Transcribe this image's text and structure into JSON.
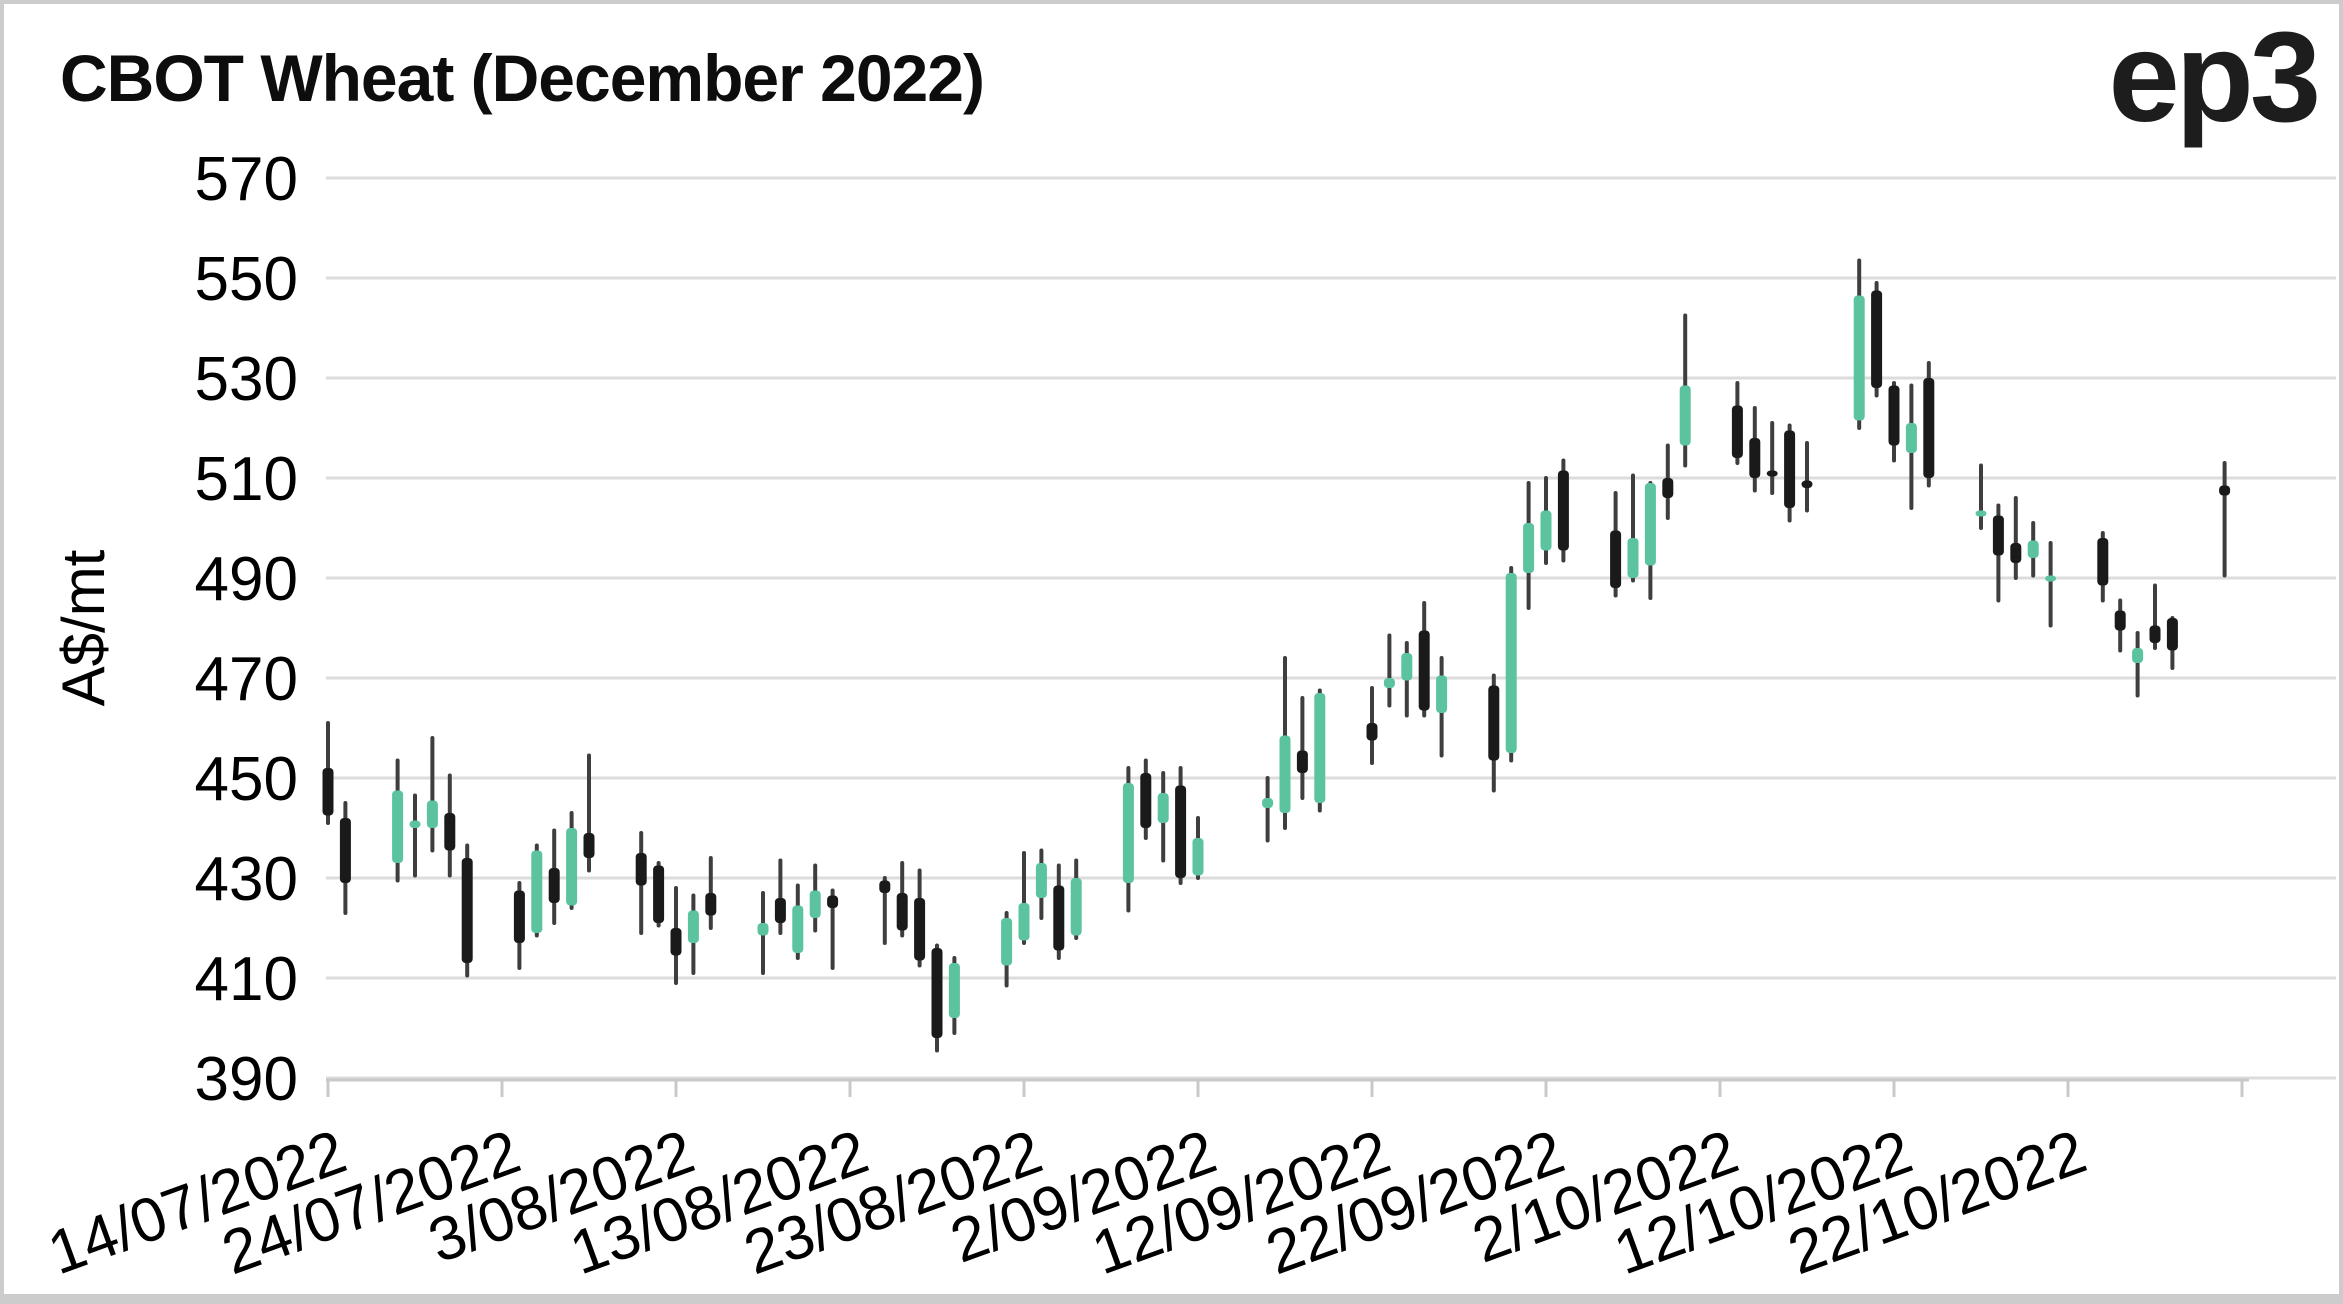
{
  "title": "CBOT Wheat (December 2022)",
  "logo": {
    "text": "ep3"
  },
  "chart_data": {
    "type": "candlestick",
    "title": "CBOT Wheat (December 2022)",
    "ylabel": "A$/mt",
    "ylim": [
      390,
      570
    ],
    "y_ticks": [
      390,
      410,
      430,
      450,
      470,
      490,
      510,
      530,
      550,
      570
    ],
    "grid": "horizontal",
    "legend": "none",
    "x_ticks": [
      {
        "label": "14/07/2022",
        "day": 0
      },
      {
        "label": "24/07/2022",
        "day": 10
      },
      {
        "label": "3/08/2022",
        "day": 20
      },
      {
        "label": "13/08/2022",
        "day": 30
      },
      {
        "label": "23/08/2022",
        "day": 40
      },
      {
        "label": "2/09/2022",
        "day": 50
      },
      {
        "label": "12/09/2022",
        "day": 60
      },
      {
        "label": "22/09/2022",
        "day": 70
      },
      {
        "label": "2/10/2022",
        "day": 80
      },
      {
        "label": "12/10/2022",
        "day": 90
      },
      {
        "label": "22/10/2022",
        "day": 100
      },
      {
        "label": "",
        "day": 110
      }
    ],
    "colors": {
      "up": "#5bc39e",
      "down": "#1a1a1a",
      "wick": "#3e3e3e",
      "grid": "#dcdcdc",
      "axis": "#c9c9c9",
      "text": "#000000"
    },
    "candle_fields": [
      "date",
      "day",
      "open",
      "high",
      "low",
      "close"
    ],
    "candles": [
      [
        "14/07/2022",
        0,
        452,
        461,
        441,
        442.5
      ],
      [
        "15/07/2022",
        1,
        442,
        445,
        423,
        429
      ],
      [
        "18/07/2022",
        4,
        433,
        453.5,
        429.5,
        447.5
      ],
      [
        "19/07/2022",
        5,
        440,
        446.5,
        430.5,
        441.5
      ],
      [
        "20/07/2022",
        6,
        440,
        458,
        435.5,
        445.5
      ],
      [
        "21/07/2022",
        7,
        443,
        450.5,
        430.5,
        435.5
      ],
      [
        "22/07/2022",
        8,
        434,
        436.5,
        410.5,
        413
      ],
      [
        "25/07/2022",
        11,
        427.5,
        429,
        412,
        417
      ],
      [
        "26/07/2022",
        12,
        419,
        436.5,
        418.5,
        435.5
      ],
      [
        "27/07/2022",
        13,
        432,
        439.5,
        421,
        425
      ],
      [
        "28/07/2022",
        14,
        424.5,
        443,
        424,
        440
      ],
      [
        "29/07/2022",
        15,
        439,
        454.5,
        431.5,
        434
      ],
      [
        "1/08/2022",
        18,
        435,
        439,
        419,
        428.5
      ],
      [
        "2/08/2022",
        19,
        432.5,
        433,
        420.5,
        421
      ],
      [
        "3/08/2022",
        20,
        420,
        428,
        409,
        414.5
      ],
      [
        "4/08/2022",
        21,
        417,
        426.5,
        411,
        423.5
      ],
      [
        "5/08/2022",
        22,
        427,
        434,
        420,
        422.5
      ],
      [
        "8/08/2022",
        25,
        418.5,
        427,
        411,
        421
      ],
      [
        "9/08/2022",
        26,
        426,
        433.5,
        419,
        421
      ],
      [
        "10/08/2022",
        27,
        415,
        428.5,
        414,
        424.5
      ],
      [
        "11/08/2022",
        28,
        422,
        432.5,
        419.5,
        427.5
      ],
      [
        "12/08/2022",
        29,
        426.5,
        427.5,
        412,
        424
      ],
      [
        "15/08/2022",
        32,
        429.5,
        430,
        417,
        427
      ],
      [
        "16/08/2022",
        33,
        427,
        433,
        418.5,
        419.5
      ],
      [
        "17/08/2022",
        34,
        426,
        431.5,
        412.5,
        413.5
      ],
      [
        "18/08/2022",
        35,
        416,
        416.5,
        395.5,
        398
      ],
      [
        "19/08/2022",
        36,
        402,
        414,
        399,
        413
      ],
      [
        "22/08/2022",
        39,
        412.5,
        423,
        408.5,
        422
      ],
      [
        "23/08/2022",
        40,
        417.5,
        435,
        417,
        425
      ],
      [
        "24/08/2022",
        41,
        426,
        435.5,
        422,
        433
      ],
      [
        "25/08/2022",
        42,
        428.5,
        432.5,
        414,
        415.5
      ],
      [
        "26/08/2022",
        43,
        418.5,
        433.5,
        418,
        430
      ],
      [
        "29/08/2022",
        46,
        429,
        452,
        423.5,
        449
      ],
      [
        "30/08/2022",
        47,
        451,
        453.5,
        438,
        440
      ],
      [
        "31/08/2022",
        48,
        441,
        451,
        433.5,
        447
      ],
      [
        "1/09/2022",
        49,
        448.5,
        452,
        429,
        430
      ],
      [
        "2/09/2022",
        50,
        430.5,
        442,
        430,
        438
      ],
      [
        "6/09/2022",
        54,
        444,
        450,
        437.5,
        446
      ],
      [
        "7/09/2022",
        55,
        443,
        474,
        440,
        458.5
      ],
      [
        "8/09/2022",
        56,
        455.5,
        466,
        446,
        451
      ],
      [
        "9/09/2022",
        57,
        445,
        467.5,
        443.5,
        467
      ],
      [
        "12/09/2022",
        60,
        461,
        468,
        453,
        457.5
      ],
      [
        "13/09/2022",
        61,
        468,
        478.5,
        464.5,
        470
      ],
      [
        "14/09/2022",
        62,
        469.5,
        477,
        462.5,
        475
      ],
      [
        "15/09/2022",
        63,
        479.5,
        485,
        462.5,
        463.5
      ],
      [
        "16/09/2022",
        64,
        463,
        474,
        454.5,
        470.5
      ],
      [
        "19/09/2022",
        67,
        468.5,
        470.5,
        447.5,
        453.5
      ],
      [
        "20/09/2022",
        68,
        455,
        492,
        453.5,
        491
      ],
      [
        "21/09/2022",
        69,
        491,
        509,
        484,
        501
      ],
      [
        "22/09/2022",
        70,
        495.5,
        510,
        493,
        503.5
      ],
      [
        "23/09/2022",
        71,
        511.5,
        513.5,
        493.5,
        495.5
      ],
      [
        "26/09/2022",
        74,
        499.5,
        507,
        486.5,
        488
      ],
      [
        "27/09/2022",
        75,
        490,
        510.5,
        489.5,
        498
      ],
      [
        "28/09/2022",
        76,
        492.5,
        509,
        486,
        509
      ],
      [
        "29/09/2022",
        77,
        510,
        516.5,
        502,
        506
      ],
      [
        "30/09/2022",
        78,
        516.5,
        542.5,
        512.5,
        528.5
      ],
      [
        "3/10/2022",
        81,
        524.5,
        529,
        513,
        514
      ],
      [
        "4/10/2022",
        82,
        518,
        524,
        507.5,
        510
      ],
      [
        "5/10/2022",
        83,
        511.5,
        521,
        507,
        510.5
      ],
      [
        "6/10/2022",
        84,
        519.5,
        520.5,
        501.5,
        504
      ],
      [
        "7/10/2022",
        85,
        509.5,
        517,
        503.5,
        508
      ],
      [
        "10/10/2022",
        88,
        521.5,
        553.5,
        520,
        546.5
      ],
      [
        "11/10/2022",
        89,
        547.5,
        549,
        526.5,
        528
      ],
      [
        "12/10/2022",
        90,
        528.5,
        529,
        513.5,
        516.5
      ],
      [
        "13/10/2022",
        91,
        515,
        528.5,
        504,
        521
      ],
      [
        "14/10/2022",
        92,
        530,
        533,
        508.5,
        510
      ],
      [
        "17/10/2022",
        95,
        502.5,
        512.5,
        500,
        503.5
      ],
      [
        "18/10/2022",
        96,
        502.5,
        504.5,
        485.5,
        494.5
      ],
      [
        "19/10/2022",
        97,
        497,
        506,
        490,
        493
      ],
      [
        "20/10/2022",
        98,
        494,
        501,
        490.5,
        497.5
      ],
      [
        "21/10/2022",
        99,
        490,
        497,
        480.5,
        490.5
      ],
      [
        "24/10/2022",
        102,
        498,
        499,
        485.5,
        488.5
      ],
      [
        "25/10/2022",
        103,
        483.5,
        485.5,
        475.5,
        479.5
      ],
      [
        "26/10/2022",
        104,
        473,
        479,
        466.5,
        476
      ],
      [
        "27/10/2022",
        105,
        480.5,
        488.5,
        476,
        477
      ],
      [
        "28/10/2022",
        106,
        482,
        482,
        472,
        475.5
      ],
      [
        "31/10/2022",
        109,
        508.5,
        513,
        490.5,
        506.5
      ]
    ]
  }
}
